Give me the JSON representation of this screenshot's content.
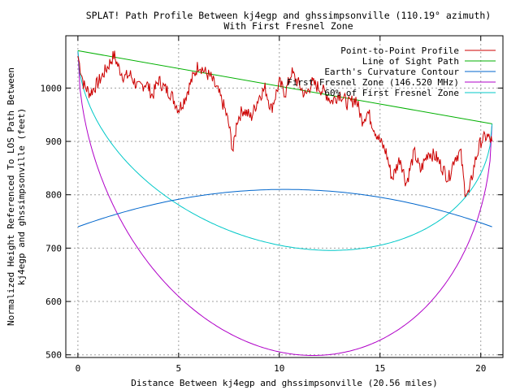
{
  "chart_data": {
    "type": "line",
    "title": "SPLAT! Path Profile Between kj4egp and ghssimpsonville (110.19° azimuth)",
    "subtitle": "With First Fresnel Zone",
    "xlabel": "Distance Between kj4egp and ghssimpsonville (20.56 miles)",
    "ylabel_line1": "Normalized Height Referenced To LOS Path Between",
    "ylabel_line2": "kj4egp and ghssimpsonville (feet)",
    "xlim": [
      -0.6,
      21.1
    ],
    "ylim": [
      495,
      1098
    ],
    "x_ticks": [
      0,
      5,
      10,
      15,
      20
    ],
    "y_ticks": [
      500,
      600,
      700,
      800,
      900,
      1000
    ],
    "grid": true,
    "legend_position": "top-right",
    "series": [
      {
        "name": "Point-to-Point Profile",
        "color": "#cc0000",
        "x": [
          0,
          0.3,
          0.6,
          1.0,
          1.4,
          1.8,
          2.0,
          2.3,
          2.6,
          3.0,
          3.4,
          3.7,
          4.0,
          4.3,
          4.6,
          5.0,
          5.3,
          5.6,
          6.0,
          6.3,
          6.6,
          7.0,
          7.3,
          7.5,
          7.7,
          7.9,
          8.2,
          8.6,
          9.0,
          9.3,
          9.6,
          10.0,
          10.3,
          10.6,
          11.0,
          11.3,
          11.6,
          12.0,
          12.3,
          12.6,
          13.0,
          13.4,
          13.8,
          14.1,
          14.4,
          14.7,
          15.0,
          15.3,
          15.6,
          16.0,
          16.3,
          16.7,
          17.0,
          17.4,
          17.8,
          18.1,
          18.4,
          18.7,
          19.0,
          19.2,
          19.4,
          19.7,
          20.0,
          20.3,
          20.56
        ],
        "y": [
          1060,
          1005,
          990,
          1010,
          1035,
          1062,
          1040,
          1020,
          1025,
          1000,
          1010,
          985,
          1015,
          1000,
          990,
          960,
          980,
          1010,
          1045,
          1030,
          1020,
          990,
          960,
          930,
          880,
          940,
          960,
          945,
          985,
          1000,
          960,
          1010,
          990,
          1030,
          1005,
          985,
          1010,
          1000,
          990,
          975,
          990,
          970,
          980,
          940,
          955,
          925,
          900,
          880,
          830,
          870,
          820,
          880,
          845,
          880,
          870,
          850,
          830,
          870,
          880,
          810,
          800,
          860,
          900,
          910,
          900
        ]
      },
      {
        "name": "Line of Sight Path",
        "color": "#00b000"
      },
      {
        "name": "Earth's Curvature Contour",
        "color": "#0066cc"
      },
      {
        "name": "First Fresnel Zone (146.520 MHz)",
        "color": "#b000c8"
      },
      {
        "name": "60% of First Fresnel Zone",
        "color": "#00c8c8"
      }
    ],
    "line_of_sight": {
      "start": 1070,
      "end": 933
    },
    "earth_curvature": {
      "ends": 740,
      "bulge": 70
    },
    "fresnel": {
      "depth": 498,
      "depth_60": 298
    }
  }
}
